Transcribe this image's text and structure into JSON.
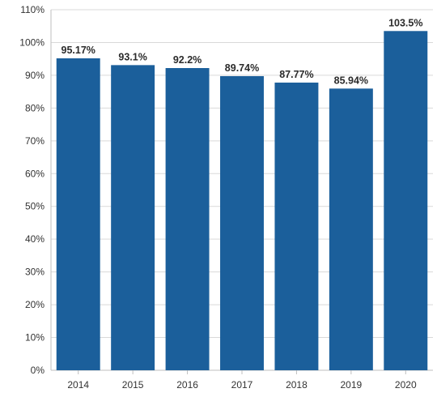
{
  "chart_data": {
    "type": "bar",
    "categories": [
      "2014",
      "2015",
      "2016",
      "2017",
      "2018",
      "2019",
      "2020"
    ],
    "values": [
      95.17,
      93.1,
      92.2,
      89.74,
      87.77,
      85.94,
      103.5
    ],
    "data_labels": [
      "95.17%",
      "93.1%",
      "92.2%",
      "89.74%",
      "87.77%",
      "85.94%",
      "103.5%"
    ],
    "y_ticks": [
      0,
      10,
      20,
      30,
      40,
      50,
      60,
      70,
      80,
      90,
      100,
      110
    ],
    "y_tick_labels": [
      "0%",
      "10%",
      "20%",
      "30%",
      "40%",
      "50%",
      "60%",
      "70%",
      "80%",
      "90%",
      "100%",
      "110%"
    ],
    "ylim": [
      0,
      110
    ],
    "grid": true,
    "legend": "none",
    "bar_color": "#1b5f9b",
    "title": "",
    "xlabel": "",
    "ylabel": ""
  }
}
